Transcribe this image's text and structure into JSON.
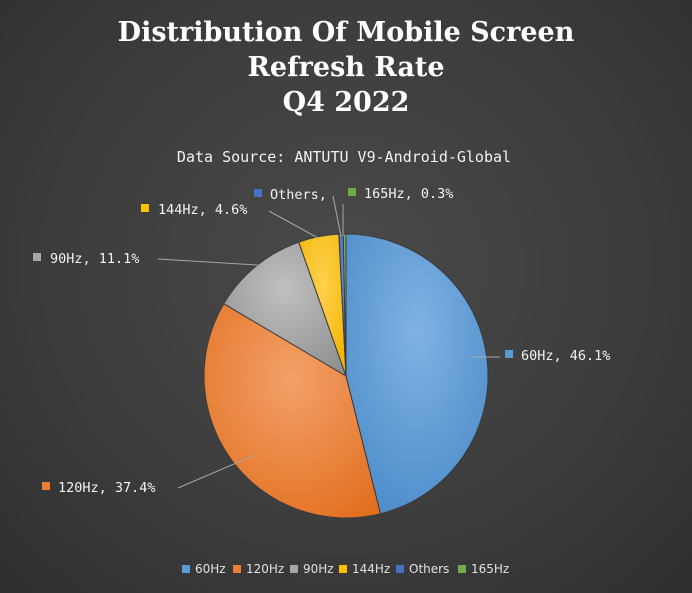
{
  "chart_data": {
    "type": "pie",
    "title": [
      "Distribution Of Mobile Screen",
      "Refresh Rate",
      "Q4 2022"
    ],
    "subtitle": "Data Source: ANTUTU V9-Android-Global",
    "slices": [
      {
        "name": "60Hz",
        "value": 46.1,
        "label": "60Hz, 46.1%",
        "color": "#5b9bd5"
      },
      {
        "name": "120Hz",
        "value": 37.4,
        "label": "120Hz, 37.4%",
        "color": "#ed7d31"
      },
      {
        "name": "90Hz",
        "value": 11.1,
        "label": "90Hz, 11.1%",
        "color": "#a5a5a5"
      },
      {
        "name": "144Hz",
        "value": 4.6,
        "label": "144Hz, 4.6%",
        "color": "#ffc000"
      },
      {
        "name": "Others",
        "value": 0.5,
        "label": "Others, ",
        "color": "#4472c4"
      },
      {
        "name": "165Hz",
        "value": 0.3,
        "label": "165Hz, 0.3%",
        "color": "#70ad47"
      }
    ],
    "legend_position": "bottom"
  }
}
